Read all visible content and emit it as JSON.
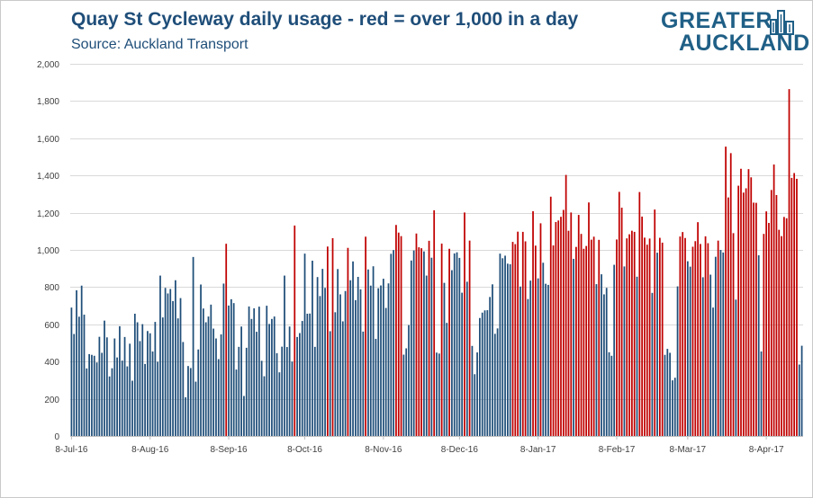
{
  "chart_data": {
    "type": "bar",
    "title": "Quay St Cycleway daily usage - red = over 1,000 in a day",
    "subtitle": "Source: Auckland Transport",
    "xlabel": "",
    "ylabel": "",
    "ylim": [
      0,
      2000
    ],
    "yticks": [
      "0",
      "200",
      "400",
      "600",
      "800",
      "1,000",
      "1,200",
      "1,400",
      "1,600",
      "1,800",
      "2,000"
    ],
    "ytick_values": [
      0,
      200,
      400,
      600,
      800,
      1000,
      1200,
      1400,
      1600,
      1800,
      2000
    ],
    "xtick_labels": [
      "8-Jul-16",
      "8-Aug-16",
      "8-Sep-16",
      "8-Oct-16",
      "8-Nov-16",
      "8-Dec-16",
      "8-Jan-17",
      "8-Feb-17",
      "8-Mar-17",
      "8-Apr-17"
    ],
    "xtick_day_index": [
      0,
      31,
      62,
      92,
      123,
      153,
      184,
      215,
      243,
      274
    ],
    "start_date": "8-Jul-16",
    "threshold": 1000,
    "grid": true,
    "colors": {
      "below": "#1f4e79",
      "above": "#c00000"
    },
    "values": [
      690,
      548,
      783,
      641,
      808,
      652,
      363,
      440,
      436,
      431,
      395,
      533,
      447,
      620,
      530,
      320,
      364,
      524,
      422,
      590,
      405,
      532,
      374,
      496,
      297,
      657,
      611,
      510,
      601,
      387,
      564,
      552,
      454,
      613,
      399,
      862,
      637,
      796,
      766,
      790,
      725,
      837,
      632,
      741,
      505,
      208,
      376,
      365,
      962,
      292,
      465,
      814,
      685,
      611,
      642,
      706,
      577,
      524,
      413,
      546,
      819,
      1033,
      701,
      735,
      714,
      357,
      479,
      588,
      215,
      474,
      696,
      629,
      686,
      560,
      695,
      404,
      321,
      700,
      602,
      629,
      642,
      445,
      342,
      480,
      862,
      478,
      588,
      400,
      1131,
      532,
      553,
      618,
      980,
      657,
      658,
      942,
      479,
      854,
      752,
      898,
      796,
      1018,
      563,
      1063,
      665,
      897,
      761,
      616,
      779,
      1011,
      837,
      938,
      730,
      855,
      788,
      561,
      1071,
      895,
      808,
      912,
      522,
      794,
      809,
      845,
      688,
      820,
      979,
      999,
      1134,
      1093,
      1074,
      437,
      471,
      596,
      943,
      997,
      1088,
      1014,
      1009,
      992,
      862,
      1049,
      958,
      1213,
      448,
      443,
      1034,
      823,
      608,
      1006,
      891,
      981,
      987,
      957,
      770,
      1201,
      829,
      1050,
      484,
      332,
      449,
      634,
      663,
      675,
      676,
      747,
      815,
      549,
      578,
      980,
      955,
      969,
      926,
      923,
      1043,
      1031,
      1098,
      803,
      1097,
      1046,
      736,
      835,
      1208,
      1023,
      847,
      1143,
      931,
      818,
      812,
      1286,
      1024,
      1150,
      1158,
      1178,
      1215,
      1403,
      1103,
      1201,
      952,
      1016,
      1188,
      1086,
      1006,
      1021,
      1255,
      1055,
      1071,
      816,
      1054,
      869,
      761,
      796,
      450,
      431,
      920,
      1056,
      1312,
      1227,
      911,
      1062,
      1084,
      1103,
      1097,
      856,
      1311,
      1179,
      1066,
      1028,
      1061,
      769,
      1217,
      985,
      1065,
      1039,
      436,
      468,
      447,
      299,
      313,
      804,
      1072,
      1096,
      1064,
      939,
      910,
      1017,
      1047,
      1149,
      1032,
      853,
      1073,
      1036,
      867,
      690,
      963,
      1050,
      1000,
      986,
      1555,
      1282,
      1520,
      1090,
      733,
      1345,
      1436,
      1308,
      1331,
      1434,
      1390,
      1254,
      1253,
      971,
      454,
      1086,
      1207,
      1145,
      1322,
      1459,
      1295,
      1108,
      1074,
      1177,
      1170,
      1864,
      1387,
      1413,
      1382,
      384,
      485
    ]
  },
  "logo": {
    "line1": "GREATER",
    "line2": "AUCKLAND"
  }
}
